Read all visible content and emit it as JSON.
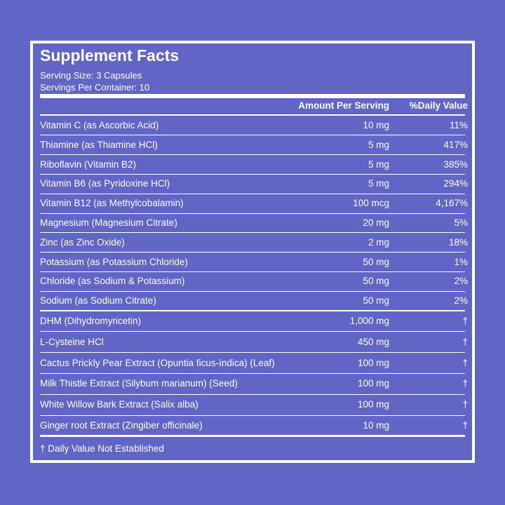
{
  "title": "Supplement Facts",
  "serving_size": "Serving Size: 3 Capsules",
  "servings_per_container": "Servings Per Container: 10",
  "table": {
    "header": [
      "Amount Per Serving",
      "%Daily Value"
    ],
    "rows": [
      [
        "Vitamin C (as Ascorbic Acid)",
        "10 mg",
        "11%"
      ],
      [
        "Thiamine (as Thiamine HCl)",
        "5 mg",
        "417%"
      ],
      [
        "Riboflavin (Vitamin B2)",
        "5 mg",
        "385%"
      ],
      [
        "Vitamin B6 (as Pyridoxine HCl)",
        "5 mg",
        "294%"
      ],
      [
        "Vitamin B12 (as Methylcobalamin)",
        "100 mcg",
        "4,167%"
      ],
      [
        "Magnesium (Magnesium Citrate)",
        "20 mg",
        "5%"
      ],
      [
        "Zinc (as Zinc Oxide)",
        "2 mg",
        "18%"
      ],
      [
        "Potassium  (as Potassium Chloride)",
        "50 mg",
        "1%"
      ],
      [
        "Chloride (as Sodium & Potassium)",
        "50 mg",
        "2%"
      ],
      [
        "Sodium (as Sodium Citrate)",
        "50 mg",
        "2%"
      ],
      [
        "DHM (Dihydromyricetin)",
        "1,000 mg",
        "†"
      ],
      [
        "L-Cysteine HCl",
        "450 mg",
        "†"
      ],
      [
        "Cactus Prickly Pear Extract (Opuntia ficus-índica) (Leaf)",
        "100 mg",
        "†"
      ],
      [
        "Milk Thistle Extract (Silybum marianum) (Seed)",
        "100 mg",
        "†"
      ],
      [
        "White Willow Bark Extract (Salix alba)",
        "100 mg",
        "†"
      ],
      [
        "Ginger root Extract (Zingiber officinale)",
        "10 mg",
        "†"
      ]
    ]
  },
  "footnote": "† Daily Value Not Established"
}
